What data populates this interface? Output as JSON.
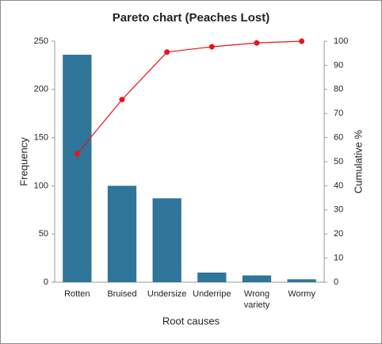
{
  "chart_data": {
    "type": "pareto",
    "title": "Pareto chart (Peaches Lost)",
    "x_label": "Root causes",
    "y_label": "Frequency",
    "y2_label": "Cumulative %",
    "categories": [
      "Rotten",
      "Bruised",
      "Undersize",
      "Underripe",
      "Wrong variety",
      "Wormy"
    ],
    "series": [
      {
        "color": "#2e7599",
        "values": [
          236,
          100,
          87,
          10,
          7,
          3
        ]
      },
      {
        "color": "#e8141b",
        "axis": "y2",
        "values": [
          53.3,
          75.8,
          95.5,
          97.7,
          99.3,
          100
        ]
      }
    ],
    "ylim": [
      0,
      250
    ],
    "yticks": [
      0,
      50,
      100,
      150,
      200,
      250
    ],
    "y2lim": [
      0,
      100
    ],
    "y2ticks": [
      0,
      10,
      20,
      30,
      40,
      50,
      60,
      70,
      80,
      90,
      100
    ],
    "grid": false
  }
}
